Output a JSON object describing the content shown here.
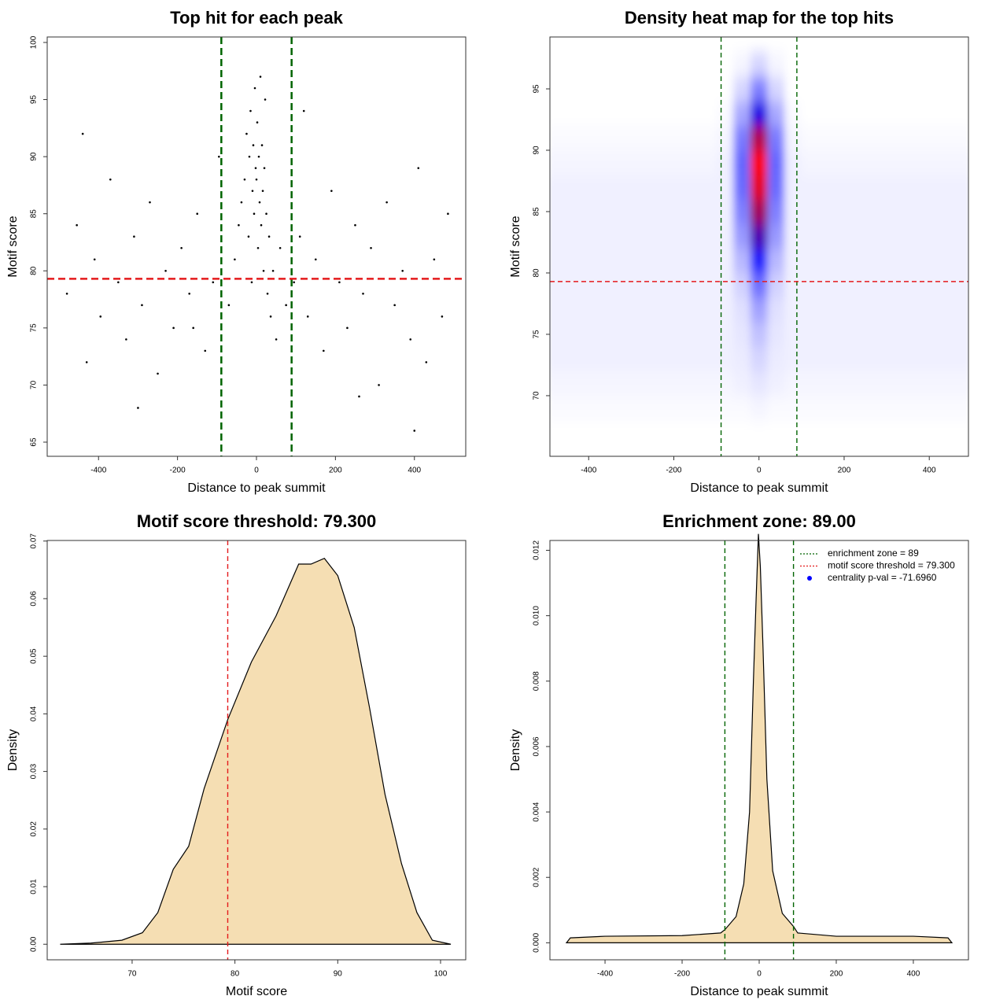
{
  "chart_data": [
    {
      "type": "scatter",
      "title": "Top hit for each peak",
      "xlabel": "Distance to peak summit",
      "ylabel": "Motif score",
      "x": [
        -480,
        -455,
        -430,
        -410,
        -395,
        -370,
        -350,
        -330,
        -310,
        -290,
        -270,
        -250,
        -230,
        -210,
        -190,
        -170,
        -150,
        -130,
        -110,
        -95,
        -70,
        -55,
        -45,
        -38,
        -30,
        -25,
        -20,
        -18,
        -15,
        -12,
        -10,
        -8,
        -6,
        -4,
        -2,
        0,
        2,
        4,
        6,
        8,
        10,
        12,
        14,
        16,
        18,
        20,
        22,
        25,
        28,
        32,
        36,
        42,
        50,
        60,
        75,
        95,
        110,
        130,
        150,
        170,
        190,
        210,
        230,
        250,
        270,
        290,
        310,
        330,
        350,
        370,
        390,
        410,
        430,
        450,
        470,
        485,
        -440,
        -300,
        -160,
        120,
        260,
        400
      ],
      "values": [
        78,
        84,
        72,
        81,
        76,
        88,
        79,
        74,
        83,
        77,
        86,
        71,
        80,
        75,
        82,
        78,
        85,
        73,
        79,
        90,
        77,
        81,
        84,
        86,
        88,
        92,
        83,
        90,
        94,
        79,
        87,
        91,
        85,
        96,
        89,
        88,
        93,
        82,
        90,
        86,
        97,
        84,
        91,
        87,
        80,
        89,
        95,
        85,
        78,
        83,
        76,
        80,
        74,
        82,
        77,
        79,
        83,
        76,
        81,
        73,
        87,
        79,
        75,
        84,
        78,
        82,
        70,
        86,
        77,
        80,
        74,
        89,
        72,
        81,
        76,
        85,
        92,
        68,
        75,
        94,
        69,
        66
      ],
      "color": "#000000",
      "xlim": [
        -530,
        530
      ],
      "ylim": [
        63.76,
        100.48
      ],
      "xticks": [
        -400,
        -200,
        0,
        200,
        400
      ],
      "yticks": [
        65,
        70,
        75,
        80,
        85,
        90,
        95,
        100
      ],
      "vlines": [
        -89,
        89
      ],
      "hlines": [
        79.3
      ],
      "vline_color": "#006400",
      "hline_color": "#e41a1c"
    },
    {
      "type": "heatmap",
      "title": "Density heat map for the top hits",
      "xlabel": "Distance to peak summit",
      "ylabel": "Motif score",
      "x": [
        -480,
        -440,
        -400,
        -360,
        -320,
        -280,
        -240,
        -200,
        -160,
        -120,
        -80,
        -40,
        0,
        40,
        80,
        120,
        160,
        200,
        240,
        280,
        320,
        360,
        400,
        440,
        480
      ],
      "y": [
        67,
        69,
        71,
        73,
        75,
        77,
        79,
        81,
        83,
        85,
        87,
        89,
        91,
        93,
        95,
        97
      ],
      "z": [
        [
          0,
          0,
          0,
          0,
          0,
          0,
          0,
          0,
          0,
          0,
          0,
          0,
          0,
          0,
          0,
          0,
          0,
          0,
          0,
          0,
          0,
          0,
          0,
          0,
          0
        ],
        [
          0.01,
          0.01,
          0.01,
          0.01,
          0.01,
          0.01,
          0.01,
          0.01,
          0.01,
          0.01,
          0.01,
          0.01,
          0.02,
          0.01,
          0.01,
          0.01,
          0.01,
          0.01,
          0.01,
          0.01,
          0.01,
          0.01,
          0.01,
          0.01,
          0.01
        ],
        [
          0.02,
          0.02,
          0.02,
          0.02,
          0.02,
          0.02,
          0.02,
          0.02,
          0.02,
          0.02,
          0.02,
          0.03,
          0.05,
          0.03,
          0.02,
          0.02,
          0.02,
          0.02,
          0.02,
          0.02,
          0.02,
          0.02,
          0.02,
          0.02,
          0.02
        ],
        [
          0.03,
          0.03,
          0.03,
          0.03,
          0.03,
          0.03,
          0.03,
          0.03,
          0.03,
          0.03,
          0.03,
          0.04,
          0.08,
          0.04,
          0.03,
          0.03,
          0.03,
          0.03,
          0.03,
          0.03,
          0.03,
          0.03,
          0.03,
          0.03,
          0.03
        ],
        [
          0.03,
          0.03,
          0.03,
          0.03,
          0.03,
          0.03,
          0.03,
          0.03,
          0.03,
          0.03,
          0.03,
          0.05,
          0.12,
          0.05,
          0.03,
          0.03,
          0.03,
          0.03,
          0.03,
          0.03,
          0.03,
          0.03,
          0.03,
          0.03,
          0.03
        ],
        [
          0.03,
          0.03,
          0.03,
          0.03,
          0.03,
          0.03,
          0.03,
          0.03,
          0.03,
          0.03,
          0.03,
          0.06,
          0.18,
          0.06,
          0.03,
          0.03,
          0.03,
          0.03,
          0.03,
          0.03,
          0.03,
          0.03,
          0.03,
          0.03,
          0.03
        ],
        [
          0.03,
          0.03,
          0.03,
          0.03,
          0.03,
          0.03,
          0.03,
          0.03,
          0.03,
          0.03,
          0.03,
          0.09,
          0.28,
          0.09,
          0.03,
          0.03,
          0.03,
          0.03,
          0.03,
          0.03,
          0.03,
          0.03,
          0.03,
          0.03,
          0.03
        ],
        [
          0.03,
          0.03,
          0.03,
          0.03,
          0.03,
          0.03,
          0.03,
          0.03,
          0.03,
          0.03,
          0.03,
          0.14,
          0.45,
          0.14,
          0.03,
          0.03,
          0.03,
          0.03,
          0.03,
          0.03,
          0.03,
          0.03,
          0.03,
          0.03,
          0.03
        ],
        [
          0.03,
          0.03,
          0.03,
          0.03,
          0.03,
          0.03,
          0.03,
          0.03,
          0.03,
          0.03,
          0.03,
          0.2,
          0.65,
          0.2,
          0.03,
          0.03,
          0.03,
          0.03,
          0.03,
          0.03,
          0.03,
          0.03,
          0.03,
          0.03,
          0.03
        ],
        [
          0.03,
          0.03,
          0.03,
          0.03,
          0.03,
          0.03,
          0.03,
          0.03,
          0.03,
          0.03,
          0.03,
          0.25,
          0.82,
          0.25,
          0.03,
          0.03,
          0.03,
          0.03,
          0.03,
          0.03,
          0.03,
          0.03,
          0.03,
          0.03,
          0.03
        ],
        [
          0.03,
          0.03,
          0.03,
          0.03,
          0.03,
          0.03,
          0.03,
          0.03,
          0.03,
          0.03,
          0.03,
          0.29,
          0.95,
          0.29,
          0.03,
          0.03,
          0.03,
          0.03,
          0.03,
          0.03,
          0.03,
          0.03,
          0.03,
          0.03,
          0.03
        ],
        [
          0.02,
          0.02,
          0.02,
          0.02,
          0.02,
          0.02,
          0.02,
          0.02,
          0.02,
          0.02,
          0.03,
          0.3,
          1,
          0.3,
          0.03,
          0.02,
          0.02,
          0.02,
          0.02,
          0.02,
          0.02,
          0.02,
          0.02,
          0.02,
          0.02
        ],
        [
          0.01,
          0.01,
          0.01,
          0.01,
          0.01,
          0.01,
          0.01,
          0.01,
          0.01,
          0.01,
          0.02,
          0.26,
          0.85,
          0.26,
          0.02,
          0.01,
          0.01,
          0.01,
          0.01,
          0.01,
          0.01,
          0.01,
          0.01,
          0.01,
          0.01
        ],
        [
          0,
          0,
          0,
          0,
          0,
          0,
          0,
          0,
          0,
          0,
          0.01,
          0.17,
          0.55,
          0.17,
          0.01,
          0,
          0,
          0,
          0,
          0,
          0,
          0,
          0,
          0,
          0
        ],
        [
          0,
          0,
          0,
          0,
          0,
          0,
          0,
          0,
          0,
          0,
          0,
          0.08,
          0.25,
          0.08,
          0,
          0,
          0,
          0,
          0,
          0,
          0,
          0,
          0,
          0,
          0
        ],
        [
          0,
          0,
          0,
          0,
          0,
          0,
          0,
          0,
          0,
          0,
          0,
          0.02,
          0.08,
          0.02,
          0,
          0,
          0,
          0,
          0,
          0,
          0,
          0,
          0,
          0,
          0
        ]
      ],
      "colors": [
        "#ffffff",
        "#0000ff",
        "#ff0000"
      ],
      "xlim": [
        -491,
        492
      ],
      "ylim": [
        65.06,
        99.23
      ],
      "xticks": [
        -400,
        -200,
        0,
        200,
        400
      ],
      "yticks": [
        70,
        75,
        80,
        85,
        90,
        95
      ],
      "vlines": [
        -89,
        89
      ],
      "hlines": [
        79.3
      ],
      "vline_color": "#006400",
      "hline_color": "#e41a1c"
    },
    {
      "type": "density",
      "title": "Motif score threshold: 79.300",
      "xlabel": "Motif score",
      "ylabel": "Density",
      "x": [
        63,
        66,
        69,
        71,
        72.5,
        74,
        75.5,
        77,
        79.3,
        81.6,
        84,
        86.2,
        87.4,
        88.7,
        90,
        91.6,
        93.1,
        94.6,
        96.2,
        97.7,
        99.2,
        101
      ],
      "values": [
        0,
        0.0002,
        0.0007,
        0.002,
        0.0055,
        0.013,
        0.017,
        0.027,
        0.039,
        0.049,
        0.057,
        0.066,
        0.066,
        0.067,
        0.064,
        0.055,
        0.041,
        0.026,
        0.014,
        0.0055,
        0.0007,
        0
      ],
      "color": "#f5deb3",
      "xlim": [
        61.74,
        102.45
      ],
      "ylim": [
        -0.0027,
        0.0701
      ],
      "xticks": [
        70,
        80,
        90,
        100
      ],
      "yticks": [
        {
          "value": 0,
          "label": "0.00"
        },
        {
          "value": 0.01,
          "label": "0.01"
        },
        {
          "value": 0.02,
          "label": "0.02"
        },
        {
          "value": 0.03,
          "label": "0.03"
        },
        {
          "value": 0.04,
          "label": "0.04"
        },
        {
          "value": 0.05,
          "label": "0.05"
        },
        {
          "value": 0.06,
          "label": "0.06"
        },
        {
          "value": 0.07,
          "label": "0.07"
        }
      ],
      "vlines": [
        79.3
      ],
      "vline_color": "#e41a1c"
    },
    {
      "type": "density",
      "title": "Enrichment zone: 89.00",
      "xlabel": "Distance to peak summit",
      "ylabel": "Density",
      "x": [
        -500,
        -490,
        -400,
        -200,
        -100,
        -89,
        -60,
        -40,
        -25,
        -15,
        -8,
        -2,
        3,
        10,
        20,
        35,
        60,
        89,
        100,
        200,
        400,
        490,
        500
      ],
      "values": [
        0,
        0.00015,
        0.0002,
        0.00022,
        0.0003,
        0.0004,
        0.0008,
        0.0018,
        0.004,
        0.008,
        0.0105,
        0.0125,
        0.0115,
        0.009,
        0.005,
        0.0022,
        0.0009,
        0.0005,
        0.0003,
        0.0002,
        0.0002,
        0.00015,
        0
      ],
      "color": "#f5deb3",
      "xlim": [
        -543,
        543
      ],
      "ylim": [
        -0.00052,
        0.0123
      ],
      "xticks": [
        -400,
        -200,
        0,
        200,
        400
      ],
      "yticks": [
        {
          "value": 0,
          "label": "0.000"
        },
        {
          "value": 0.002,
          "label": "0.002"
        },
        {
          "value": 0.004,
          "label": "0.004"
        },
        {
          "value": 0.006,
          "label": "0.006"
        },
        {
          "value": 0.008,
          "label": "0.008"
        },
        {
          "value": 0.01,
          "label": "0.010"
        },
        {
          "value": 0.012,
          "label": "0.012"
        }
      ],
      "vlines": [
        -89,
        89
      ],
      "vline_color": "#006400",
      "legend_position": "topright",
      "legend": [
        {
          "label": "enrichment zone = 89",
          "color": "#006400",
          "symbol": "line"
        },
        {
          "label": "motif score threshold = 79.300",
          "color": "#e41a1c",
          "symbol": "line"
        },
        {
          "label": "centrality p-val = -71.6960",
          "color": "#0000ff",
          "symbol": "point"
        }
      ]
    }
  ]
}
